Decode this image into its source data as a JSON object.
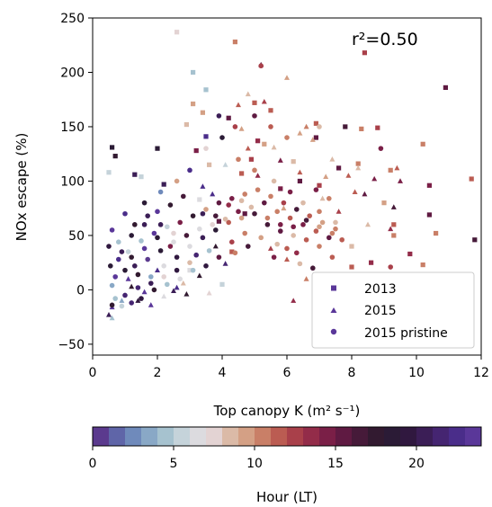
{
  "chart_data": {
    "type": "scatter",
    "xlabel": "Top canopy K (m² s⁻¹)",
    "ylabel": "NOx escape (%)",
    "xlim": [
      0,
      12
    ],
    "ylim": [
      -60,
      250
    ],
    "xticks": [
      0,
      2,
      4,
      6,
      8,
      10,
      12
    ],
    "yticks": [
      -50,
      0,
      50,
      100,
      150,
      200,
      250
    ],
    "annotation": "r²=0.50",
    "legend_position": "lower-right",
    "series": [
      {
        "name": "2013",
        "marker": "square",
        "points": [
          [
            2.6,
            237
          ],
          [
            4.4,
            228
          ],
          [
            8.4,
            218
          ],
          [
            10.9,
            186
          ],
          [
            5.0,
            172
          ],
          [
            4.2,
            158
          ],
          [
            3.2,
            128
          ],
          [
            2.0,
            130
          ],
          [
            0.6,
            131
          ],
          [
            1.3,
            106
          ],
          [
            0.7,
            123
          ],
          [
            3.5,
            141
          ],
          [
            6.9,
            153
          ],
          [
            5.3,
            134
          ],
          [
            8.8,
            149
          ],
          [
            10.2,
            134
          ],
          [
            7.8,
            150
          ],
          [
            8.3,
            148
          ],
          [
            9.2,
            110
          ],
          [
            10.4,
            96
          ],
          [
            11.7,
            102
          ],
          [
            11.8,
            46
          ],
          [
            10.4,
            69
          ],
          [
            10.6,
            52
          ],
          [
            9.3,
            60
          ],
          [
            9.8,
            33
          ],
          [
            10.2,
            23
          ],
          [
            8.0,
            40
          ],
          [
            8.0,
            21
          ],
          [
            8.6,
            25
          ],
          [
            9.3,
            50
          ],
          [
            4.9,
            120
          ],
          [
            4.7,
            70
          ],
          [
            4.3,
            35
          ],
          [
            4.0,
            5
          ],
          [
            3.9,
            63
          ],
          [
            3.6,
            115
          ],
          [
            1.5,
            104
          ],
          [
            0.5,
            108
          ],
          [
            5.1,
            137
          ],
          [
            6.2,
            118
          ],
          [
            3.0,
            18
          ],
          [
            3.3,
            83
          ],
          [
            2.2,
            97
          ],
          [
            3.4,
            163
          ],
          [
            4.6,
            107
          ],
          [
            5.5,
            165
          ],
          [
            3.1,
            171
          ],
          [
            6.9,
            140
          ],
          [
            7.0,
            96
          ],
          [
            7.6,
            112
          ],
          [
            8.2,
            116
          ],
          [
            9.0,
            80
          ],
          [
            5.8,
            93
          ],
          [
            6.4,
            100
          ],
          [
            2.9,
            152
          ],
          [
            3.1,
            200
          ],
          [
            3.5,
            184
          ]
        ]
      },
      {
        "name": "2015",
        "marker": "triangle",
        "points": [
          [
            5.2,
            207
          ],
          [
            6.0,
            195
          ],
          [
            4.8,
            180
          ],
          [
            5.3,
            173
          ],
          [
            4.5,
            170
          ],
          [
            6.6,
            150
          ],
          [
            6.4,
            144
          ],
          [
            5.6,
            131
          ],
          [
            7.4,
            120
          ],
          [
            8.2,
            112
          ],
          [
            9.4,
            112
          ],
          [
            8.7,
            102
          ],
          [
            9.5,
            100
          ],
          [
            9.3,
            76
          ],
          [
            9.2,
            56
          ],
          [
            8.1,
            90
          ],
          [
            8.4,
            88
          ],
          [
            7.1,
            84
          ],
          [
            6.6,
            10
          ],
          [
            6.2,
            -10
          ],
          [
            2.2,
            -6
          ],
          [
            2.6,
            2
          ],
          [
            2.9,
            -4
          ],
          [
            1.8,
            -14
          ],
          [
            0.5,
            -23
          ],
          [
            0.6,
            -26
          ],
          [
            0.6,
            -16
          ],
          [
            4.8,
            130
          ],
          [
            5.8,
            119
          ],
          [
            3.7,
            88
          ],
          [
            3.4,
            95
          ],
          [
            2.0,
            18
          ],
          [
            1.2,
            3
          ],
          [
            0.9,
            -10
          ],
          [
            3.3,
            13
          ],
          [
            4.1,
            24
          ],
          [
            3.8,
            40
          ],
          [
            2.5,
            -1
          ],
          [
            1.4,
            -10
          ],
          [
            1.1,
            10
          ],
          [
            6.8,
            138
          ],
          [
            7.2,
            104
          ],
          [
            7.6,
            72
          ],
          [
            8.5,
            60
          ],
          [
            5.5,
            38
          ],
          [
            6.0,
            28
          ],
          [
            3.6,
            -3
          ],
          [
            2.8,
            6
          ],
          [
            1.6,
            -2
          ],
          [
            7.9,
            105
          ],
          [
            5.9,
            75
          ],
          [
            6.4,
            108
          ],
          [
            5.1,
            105
          ],
          [
            4.6,
            148
          ],
          [
            4.1,
            115
          ]
        ]
      },
      {
        "name": "2015 pristine",
        "marker": "circle",
        "points": [
          [
            5.2,
            206
          ],
          [
            7.0,
            150
          ],
          [
            8.9,
            130
          ],
          [
            9.2,
            21
          ],
          [
            7.5,
            62
          ],
          [
            7.0,
            72
          ],
          [
            6.5,
            80
          ],
          [
            6.1,
            90
          ],
          [
            5.6,
            100
          ],
          [
            5.0,
            110
          ],
          [
            4.5,
            120
          ],
          [
            4.0,
            140
          ],
          [
            3.5,
            130
          ],
          [
            3.0,
            110
          ],
          [
            2.6,
            100
          ],
          [
            2.1,
            90
          ],
          [
            1.6,
            80
          ],
          [
            1.0,
            70
          ],
          [
            0.6,
            55
          ],
          [
            0.5,
            40
          ],
          [
            0.55,
            22
          ],
          [
            0.6,
            4
          ],
          [
            0.7,
            -8
          ],
          [
            1.0,
            -5
          ],
          [
            1.4,
            2
          ],
          [
            1.8,
            12
          ],
          [
            2.2,
            22
          ],
          [
            2.6,
            30
          ],
          [
            3.0,
            40
          ],
          [
            3.4,
            48
          ],
          [
            3.8,
            55
          ],
          [
            4.2,
            62
          ],
          [
            4.6,
            66
          ],
          [
            5.0,
            70
          ],
          [
            5.4,
            60
          ],
          [
            5.8,
            54
          ],
          [
            6.2,
            50
          ],
          [
            6.6,
            46
          ],
          [
            7.0,
            40
          ],
          [
            7.4,
            30
          ],
          [
            6.8,
            20
          ],
          [
            6.3,
            34
          ],
          [
            5.7,
            42
          ],
          [
            5.2,
            48
          ],
          [
            4.7,
            52
          ],
          [
            4.3,
            44
          ],
          [
            3.9,
            30
          ],
          [
            3.5,
            22
          ],
          [
            3.1,
            18
          ],
          [
            2.7,
            10
          ],
          [
            2.3,
            5
          ],
          [
            1.9,
            0
          ],
          [
            1.5,
            -8
          ],
          [
            1.2,
            -12
          ],
          [
            0.9,
            -15
          ],
          [
            0.6,
            -14
          ],
          [
            1.1,
            35
          ],
          [
            1.5,
            45
          ],
          [
            1.9,
            52
          ],
          [
            2.3,
            58
          ],
          [
            2.7,
            62
          ],
          [
            3.1,
            68
          ],
          [
            3.5,
            74
          ],
          [
            3.9,
            80
          ],
          [
            4.3,
            84
          ],
          [
            4.7,
            88
          ],
          [
            5.1,
            92
          ],
          [
            5.5,
            86
          ],
          [
            5.9,
            80
          ],
          [
            6.3,
            74
          ],
          [
            6.7,
            68
          ],
          [
            7.1,
            62
          ],
          [
            7.5,
            56
          ],
          [
            6.0,
            140
          ],
          [
            5.5,
            150
          ],
          [
            5.0,
            160
          ],
          [
            4.4,
            150
          ],
          [
            3.9,
            160
          ],
          [
            6.9,
            92
          ],
          [
            7.3,
            84
          ],
          [
            2.8,
            86
          ],
          [
            2.4,
            78
          ],
          [
            2.0,
            72
          ],
          [
            1.6,
            60
          ],
          [
            1.2,
            50
          ],
          [
            0.8,
            44
          ],
          [
            0.8,
            28
          ],
          [
            1.3,
            22
          ],
          [
            1.7,
            28
          ],
          [
            2.1,
            36
          ],
          [
            2.5,
            44
          ],
          [
            2.9,
            50
          ],
          [
            3.3,
            56
          ],
          [
            3.7,
            60
          ],
          [
            4.1,
            65
          ],
          [
            4.5,
            72
          ],
          [
            4.9,
            76
          ],
          [
            5.3,
            80
          ],
          [
            5.7,
            72
          ],
          [
            6.1,
            66
          ],
          [
            6.5,
            60
          ],
          [
            6.9,
            54
          ],
          [
            7.3,
            48
          ],
          [
            3.0,
            25
          ],
          [
            2.6,
            18
          ],
          [
            2.2,
            12
          ],
          [
            1.8,
            6
          ],
          [
            1.4,
            14
          ],
          [
            1.0,
            18
          ],
          [
            0.7,
            12
          ],
          [
            4.4,
            34
          ],
          [
            4.8,
            40
          ],
          [
            5.6,
            30
          ],
          [
            6.0,
            38
          ],
          [
            6.4,
            24
          ],
          [
            3.6,
            36
          ],
          [
            3.2,
            32
          ],
          [
            2.4,
            40
          ],
          [
            2.0,
            48
          ],
          [
            1.6,
            38
          ],
          [
            1.2,
            30
          ],
          [
            0.9,
            35
          ],
          [
            1.3,
            60
          ],
          [
            1.7,
            68
          ],
          [
            2.1,
            60
          ],
          [
            2.5,
            52
          ],
          [
            3.4,
            70
          ],
          [
            3.8,
            68
          ],
          [
            4.2,
            78
          ],
          [
            4.6,
            82
          ],
          [
            5.4,
            66
          ],
          [
            5.8,
            60
          ],
          [
            6.2,
            58
          ],
          [
            6.6,
            64
          ],
          [
            7.0,
            58
          ],
          [
            7.4,
            52
          ],
          [
            7.7,
            46
          ]
        ]
      }
    ],
    "legend": [
      "2013",
      "2015",
      "2015 pristine"
    ],
    "colorbar": {
      "label": "Hour (LT)",
      "range": [
        0,
        24
      ],
      "ticks": [
        0,
        5,
        10,
        15,
        20
      ],
      "colors": [
        "#5b3a8e",
        "#5f65a8",
        "#6f8abb",
        "#89a8c6",
        "#a6c2cf",
        "#c5d3da",
        "#dcdbdf",
        "#e3d3d3",
        "#dbbaa7",
        "#d4a085",
        "#c97f67",
        "#bb5c52",
        "#a9404a",
        "#932c49",
        "#7a1f47",
        "#5f1a42",
        "#461a39",
        "#321a30",
        "#2b1b36",
        "#30183f",
        "#3b1e56",
        "#452571",
        "#4a2d8a",
        "#5a3799"
      ]
    }
  }
}
